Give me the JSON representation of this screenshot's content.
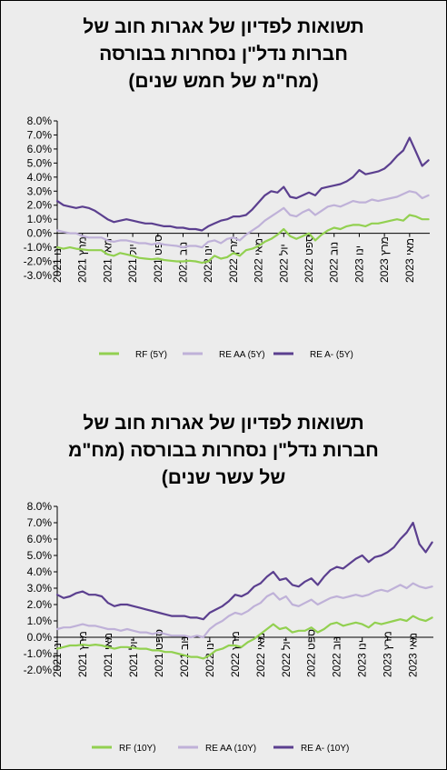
{
  "chart_data": [
    {
      "type": "line",
      "title_lines": [
        "תשואות לפדיון של אגרות חוב של",
        "חברות נדל\"ן נסחרות בבורסה",
        "(מח\"מ של חמש שנים)"
      ],
      "x_ticks": [
        "ינו 2021",
        "מרץ 2021",
        "מאי 2021",
        "יול 2021",
        "ספט 2021",
        "נוב 2021",
        "ינו 2022",
        "מרץ 2022",
        "מאי 2022",
        "יול 2022",
        "ספט 2022",
        "נוב 2022",
        "ינו 2023",
        "מרץ 2023",
        "מאי 2023"
      ],
      "x_range": [
        "2021-01",
        "2023-06"
      ],
      "y_ticks": [
        "8.0%",
        "7.0%",
        "6.0%",
        "5.0%",
        "4.0%",
        "3.0%",
        "2.0%",
        "1.0%",
        "0.0%",
        "-1.0%",
        "-2.0%",
        "-3.0%"
      ],
      "ylim": [
        -3,
        8
      ],
      "grid": false,
      "legend_position": "bottom",
      "series": [
        {
          "name": "RF (5Y)",
          "color": "#92d050",
          "x": [
            0,
            0.5,
            1,
            1.5,
            2,
            2.5,
            3,
            3.5,
            4,
            4.5,
            5,
            5.5,
            6,
            6.5,
            7,
            7.5,
            8,
            8.5,
            9,
            9.5,
            10,
            10.5,
            11,
            11.5,
            12,
            12.5,
            13,
            13.5,
            14,
            14.5,
            15,
            15.5,
            16,
            16.5,
            17,
            17.5,
            18,
            18.5,
            19,
            19.5,
            20,
            20.5,
            21,
            21.5,
            22,
            22.5,
            23,
            23.5,
            24,
            24.5,
            25,
            25.5,
            26,
            26.5,
            27,
            27.5,
            28,
            28.5,
            29,
            29.5
          ],
          "values": [
            -1.0,
            -1.1,
            -1.0,
            -1.1,
            -1.15,
            -1.2,
            -1.2,
            -1.2,
            -1.5,
            -1.6,
            -1.4,
            -1.5,
            -1.6,
            -1.75,
            -1.8,
            -1.85,
            -1.8,
            -1.9,
            -1.95,
            -2.0,
            -2.0,
            -1.95,
            -2.0,
            -2.1,
            -2.0,
            -1.6,
            -1.8,
            -1.7,
            -1.4,
            -1.6,
            -1.2,
            -1.1,
            -0.9,
            -0.6,
            -0.4,
            -0.1,
            0.3,
            -0.2,
            -0.4,
            -0.2,
            0.0,
            -0.5,
            -0.1,
            0.2,
            0.4,
            0.3,
            0.5,
            0.6,
            0.6,
            0.5,
            0.7,
            0.7,
            0.8,
            0.9,
            1.0,
            0.9,
            1.3,
            1.2,
            1.0,
            1.0
          ]
        },
        {
          "name": "RE AA (5Y)",
          "color": "#bfb1d8",
          "x": [
            0,
            0.5,
            1,
            1.5,
            2,
            2.5,
            3,
            3.5,
            4,
            4.5,
            5,
            5.5,
            6,
            6.5,
            7,
            7.5,
            8,
            8.5,
            9,
            9.5,
            10,
            10.5,
            11,
            11.5,
            12,
            12.5,
            13,
            13.5,
            14,
            14.5,
            15,
            15.5,
            16,
            16.5,
            17,
            17.5,
            18,
            18.5,
            19,
            19.5,
            20,
            20.5,
            21,
            21.5,
            22,
            22.5,
            23,
            23.5,
            24,
            24.5,
            25,
            25.5,
            26,
            26.5,
            27,
            27.5,
            28,
            28.5,
            29,
            29.5
          ],
          "values": [
            0.2,
            0.1,
            0.0,
            0.0,
            -0.2,
            -0.3,
            -0.3,
            -0.3,
            -0.5,
            -0.6,
            -0.5,
            -0.5,
            -0.6,
            -0.7,
            -0.7,
            -0.8,
            -0.7,
            -0.8,
            -0.85,
            -0.9,
            -1.0,
            -0.9,
            -0.9,
            -1.0,
            -0.6,
            -0.5,
            -0.7,
            -0.4,
            -0.3,
            -0.5,
            -0.1,
            0.2,
            0.5,
            0.9,
            1.2,
            1.5,
            1.8,
            1.3,
            1.2,
            1.5,
            1.7,
            1.3,
            1.6,
            1.9,
            2.0,
            1.9,
            2.1,
            2.3,
            2.2,
            2.2,
            2.4,
            2.3,
            2.4,
            2.5,
            2.6,
            2.8,
            3.0,
            2.9,
            2.5,
            2.7
          ]
        },
        {
          "name": "RE A- (5Y)",
          "color": "#5b3f8f",
          "x": [
            0,
            0.5,
            1,
            1.5,
            2,
            2.5,
            3,
            3.5,
            4,
            4.5,
            5,
            5.5,
            6,
            6.5,
            7,
            7.5,
            8,
            8.5,
            9,
            9.5,
            10,
            10.5,
            11,
            11.5,
            12,
            12.5,
            13,
            13.5,
            14,
            14.5,
            15,
            15.5,
            16,
            16.5,
            17,
            17.5,
            18,
            18.5,
            19,
            19.5,
            20,
            20.5,
            21,
            21.5,
            22,
            22.5,
            23,
            23.5,
            24,
            24.5,
            25,
            25.5,
            26,
            26.5,
            27,
            27.5,
            28,
            28.5,
            29,
            29.5
          ],
          "values": [
            2.3,
            2.0,
            1.9,
            1.8,
            1.9,
            1.8,
            1.6,
            1.3,
            1.0,
            0.8,
            0.9,
            1.0,
            0.9,
            0.8,
            0.7,
            0.7,
            0.6,
            0.5,
            0.5,
            0.4,
            0.4,
            0.3,
            0.3,
            0.2,
            0.5,
            0.7,
            0.9,
            1.0,
            1.2,
            1.2,
            1.3,
            1.7,
            2.2,
            2.7,
            3.0,
            2.9,
            3.3,
            2.6,
            2.5,
            2.7,
            2.9,
            2.7,
            3.2,
            3.3,
            3.4,
            3.5,
            3.7,
            4.0,
            4.5,
            4.2,
            4.3,
            4.4,
            4.6,
            5.0,
            5.5,
            5.9,
            6.8,
            5.8,
            4.8,
            5.2
          ]
        }
      ]
    },
    {
      "type": "line",
      "title_lines": [
        "תשואות לפדיון של אגרות חוב של",
        "חברות נדל\"ן נסחרות בבורסה (מח\"מ",
        "של עשר שנים)"
      ],
      "x_ticks": [
        "ינו 2021",
        "מרץ 2021",
        "מאי 2021",
        "יול 2021",
        "ספט 2021",
        "נוב 2021",
        "ינו 2022",
        "מרץ 2022",
        "מאי 2022",
        "יול 2022",
        "ספט 2022",
        "נוב 2022",
        "ינו 2023",
        "מרץ 2023",
        "מאי 2023"
      ],
      "x_range": [
        "2021-01",
        "2023-06"
      ],
      "y_ticks": [
        "8.0%",
        "7.0%",
        "6.0%",
        "5.0%",
        "4.0%",
        "3.0%",
        "2.0%",
        "1.0%",
        "0.0%",
        "-1.0%",
        "-2.0%"
      ],
      "ylim": [
        -2,
        8
      ],
      "grid": false,
      "legend_position": "bottom",
      "series": [
        {
          "name": "RF (10Y)",
          "color": "#92d050",
          "x": [
            0,
            0.5,
            1,
            1.5,
            2,
            2.5,
            3,
            3.5,
            4,
            4.5,
            5,
            5.5,
            6,
            6.5,
            7,
            7.5,
            8,
            8.5,
            9,
            9.5,
            10,
            10.5,
            11,
            11.5,
            12,
            12.5,
            13,
            13.5,
            14,
            14.5,
            15,
            15.5,
            16,
            16.5,
            17,
            17.5,
            18,
            18.5,
            19,
            19.5,
            20,
            20.5,
            21,
            21.5,
            22,
            22.5,
            23,
            23.5,
            24,
            24.5,
            25,
            25.5,
            26,
            26.5,
            27,
            27.5,
            28,
            28.5,
            29,
            29.5
          ],
          "values": [
            -0.7,
            -0.6,
            -0.5,
            -0.5,
            -0.45,
            -0.5,
            -0.45,
            -0.5,
            -0.6,
            -0.7,
            -0.6,
            -0.6,
            -0.65,
            -0.7,
            -0.7,
            -0.8,
            -0.8,
            -0.9,
            -0.9,
            -1.0,
            -1.1,
            -1.2,
            -1.2,
            -1.3,
            -1.1,
            -0.8,
            -0.7,
            -0.5,
            -0.5,
            -0.6,
            -0.3,
            -0.1,
            0.2,
            0.5,
            0.8,
            0.5,
            0.6,
            0.3,
            0.4,
            0.4,
            0.6,
            0.3,
            0.5,
            0.8,
            0.9,
            0.7,
            0.8,
            0.9,
            0.8,
            0.6,
            0.9,
            0.8,
            0.9,
            1.0,
            1.1,
            1.0,
            1.3,
            1.1,
            1.0,
            1.2
          ]
        },
        {
          "name": "RE AA (10Y)",
          "color": "#bfb1d8",
          "x": [
            0,
            0.5,
            1,
            1.5,
            2,
            2.5,
            3,
            3.5,
            4,
            4.5,
            5,
            5.5,
            6,
            6.5,
            7,
            7.5,
            8,
            8.5,
            9,
            9.5,
            10,
            10.5,
            11,
            11.5,
            12,
            12.5,
            13,
            13.5,
            14,
            14.5,
            15,
            15.5,
            16,
            16.5,
            17,
            17.5,
            18,
            18.5,
            19,
            19.5,
            20,
            20.5,
            21,
            21.5,
            22,
            22.5,
            23,
            23.5,
            24,
            24.5,
            25,
            25.5,
            26,
            26.5,
            27,
            27.5,
            28,
            28.5,
            29,
            29.5
          ],
          "values": [
            0.5,
            0.6,
            0.6,
            0.7,
            0.8,
            0.7,
            0.7,
            0.6,
            0.5,
            0.5,
            0.4,
            0.5,
            0.4,
            0.3,
            0.3,
            0.2,
            0.3,
            0.2,
            0.1,
            0.1,
            0.1,
            0.0,
            0.1,
            0.0,
            0.5,
            0.8,
            1.0,
            1.3,
            1.5,
            1.4,
            1.6,
            1.9,
            2.1,
            2.5,
            2.7,
            2.3,
            2.5,
            2.0,
            1.9,
            2.1,
            2.3,
            2.0,
            2.2,
            2.4,
            2.5,
            2.4,
            2.5,
            2.6,
            2.5,
            2.6,
            2.8,
            2.9,
            2.8,
            3.0,
            3.2,
            3.0,
            3.3,
            3.1,
            3.0,
            3.1
          ]
        },
        {
          "name": "RE A- (10Y)",
          "color": "#5b3f8f",
          "x": [
            0,
            0.5,
            1,
            1.5,
            2,
            2.5,
            3,
            3.5,
            4,
            4.5,
            5,
            5.5,
            6,
            6.5,
            7,
            7.5,
            8,
            8.5,
            9,
            9.5,
            10,
            10.5,
            11,
            11.5,
            12,
            12.5,
            13,
            13.5,
            14,
            14.5,
            15,
            15.5,
            16,
            16.5,
            17,
            17.5,
            18,
            18.5,
            19,
            19.5,
            20,
            20.5,
            21,
            21.5,
            22,
            22.5,
            23,
            23.5,
            24,
            24.5,
            25,
            25.5,
            26,
            26.5,
            27,
            27.5,
            28,
            28.5,
            29,
            29.5
          ],
          "values": [
            2.6,
            2.4,
            2.5,
            2.7,
            2.8,
            2.6,
            2.6,
            2.5,
            2.1,
            1.9,
            2.0,
            2.0,
            1.9,
            1.8,
            1.7,
            1.6,
            1.5,
            1.4,
            1.3,
            1.3,
            1.3,
            1.2,
            1.2,
            1.1,
            1.5,
            1.7,
            1.9,
            2.2,
            2.6,
            2.5,
            2.7,
            3.1,
            3.3,
            3.7,
            4.0,
            3.5,
            3.6,
            3.2,
            3.1,
            3.4,
            3.6,
            3.2,
            3.7,
            4.1,
            4.3,
            4.2,
            4.5,
            4.8,
            5.0,
            4.6,
            4.9,
            5.0,
            5.2,
            5.5,
            6.0,
            6.4,
            7.0,
            5.7,
            5.2,
            5.8
          ]
        }
      ]
    }
  ]
}
